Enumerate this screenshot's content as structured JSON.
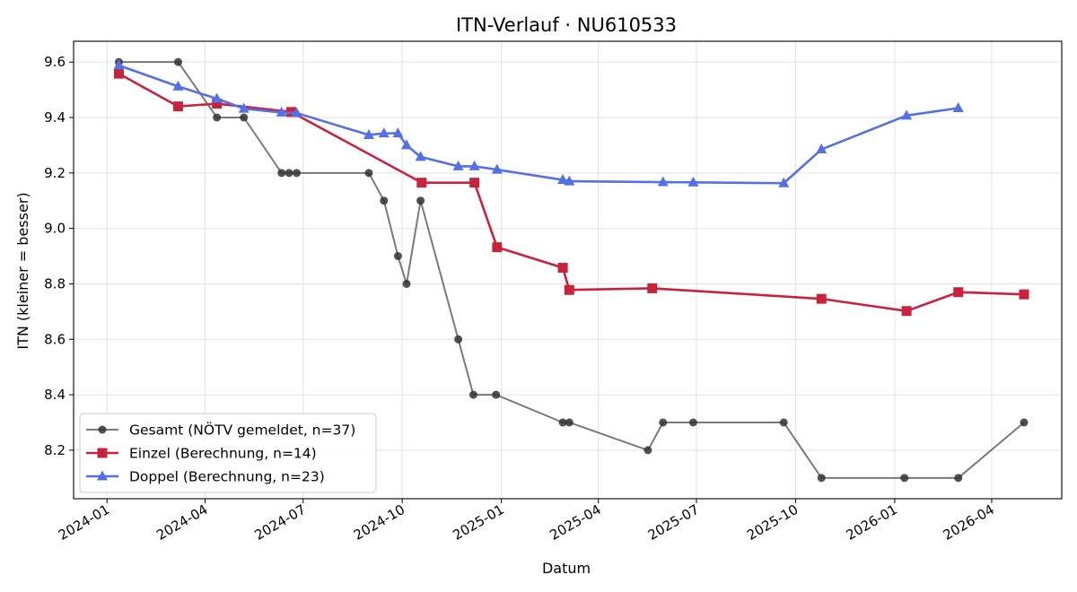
{
  "chart_data": {
    "type": "line",
    "title": "ITN-Verlauf · NU610533",
    "xlabel": "Datum",
    "ylabel": "ITN  (kleiner = besser)",
    "xlim": [
      "2023-12-01",
      "2026-06-05"
    ],
    "ylim": [
      8.025,
      9.675
    ],
    "x_ticks": [
      "2024-01-01",
      "2024-04-01",
      "2024-07-01",
      "2024-10-01",
      "2025-01-01",
      "2025-04-01",
      "2025-07-01",
      "2025-10-01",
      "2026-01-01",
      "2026-04-01"
    ],
    "x_tick_labels": [
      "2024-01",
      "2024-04",
      "2024-07",
      "2024-10",
      "2025-01",
      "2025-04",
      "2025-07",
      "2025-10",
      "2026-01",
      "2026-04"
    ],
    "y_ticks": [
      8.2,
      8.4,
      8.6,
      8.8,
      9.0,
      9.2,
      9.4,
      9.6
    ],
    "y_tick_labels": [
      "8.2",
      "8.4",
      "8.6",
      "8.8",
      "9.0",
      "9.2",
      "9.4",
      "9.6"
    ],
    "grid": true,
    "legend_position": "lower-left",
    "series": [
      {
        "name": "Gesamt (NÖTV gemeldet, n=37)",
        "color": "#555555",
        "marker": "circle",
        "points": [
          [
            "2024-01-12",
            9.6
          ],
          [
            "2024-03-07",
            9.6
          ],
          [
            "2024-04-12",
            9.4
          ],
          [
            "2024-05-07",
            9.4
          ],
          [
            "2024-06-11",
            9.2
          ],
          [
            "2024-06-18",
            9.2
          ],
          [
            "2024-06-25",
            9.2
          ],
          [
            "2024-08-31",
            9.2
          ],
          [
            "2024-09-14",
            9.1
          ],
          [
            "2024-09-27",
            8.9
          ],
          [
            "2024-10-05",
            8.8
          ],
          [
            "2024-10-18",
            9.1
          ],
          [
            "2024-11-22",
            8.6
          ],
          [
            "2024-12-06",
            8.4
          ],
          [
            "2024-12-27",
            8.4
          ],
          [
            "2025-02-27",
            8.3
          ],
          [
            "2025-03-05",
            8.3
          ],
          [
            "2025-05-17",
            8.2
          ],
          [
            "2025-05-31",
            8.3
          ],
          [
            "2025-06-28",
            8.3
          ],
          [
            "2025-09-20",
            8.3
          ],
          [
            "2025-10-25",
            8.1
          ],
          [
            "2026-01-10",
            8.1
          ],
          [
            "2026-03-01",
            8.1
          ],
          [
            "2026-05-01",
            8.3
          ]
        ]
      },
      {
        "name": "Einzel (Berechnung, n=14)",
        "color": "#c8233d",
        "marker": "square",
        "points": [
          [
            "2024-01-12",
            9.558
          ],
          [
            "2024-03-07",
            9.44
          ],
          [
            "2024-04-12",
            9.45
          ],
          [
            "2024-06-20",
            9.42
          ],
          [
            "2024-10-19",
            9.165
          ],
          [
            "2024-12-07",
            9.165
          ],
          [
            "2024-12-28",
            8.932
          ],
          [
            "2025-02-27",
            8.858
          ],
          [
            "2025-03-05",
            8.778
          ],
          [
            "2025-05-21",
            8.784
          ],
          [
            "2025-10-25",
            8.746
          ],
          [
            "2026-01-12",
            8.702
          ],
          [
            "2026-03-01",
            8.77
          ],
          [
            "2026-05-01",
            8.762
          ]
        ]
      },
      {
        "name": "Doppel (Berechnung, n=23)",
        "color": "#5470e8",
        "marker": "triangle",
        "points": [
          [
            "2024-01-12",
            9.588
          ],
          [
            "2024-03-07",
            9.512
          ],
          [
            "2024-04-12",
            9.468
          ],
          [
            "2024-05-07",
            9.432
          ],
          [
            "2024-06-11",
            9.418
          ],
          [
            "2024-06-25",
            9.416
          ],
          [
            "2024-08-31",
            9.337
          ],
          [
            "2024-09-14",
            9.343
          ],
          [
            "2024-09-27",
            9.343
          ],
          [
            "2024-10-05",
            9.3
          ],
          [
            "2024-10-18",
            9.258
          ],
          [
            "2024-11-22",
            9.224
          ],
          [
            "2024-12-07",
            9.224
          ],
          [
            "2024-12-28",
            9.212
          ],
          [
            "2025-02-27",
            9.175
          ],
          [
            "2025-03-05",
            9.17
          ],
          [
            "2025-05-31",
            9.167
          ],
          [
            "2025-06-28",
            9.166
          ],
          [
            "2025-09-20",
            9.163
          ],
          [
            "2025-10-25",
            9.285
          ],
          [
            "2026-01-12",
            9.407
          ],
          [
            "2026-03-01",
            9.434
          ]
        ]
      }
    ]
  }
}
